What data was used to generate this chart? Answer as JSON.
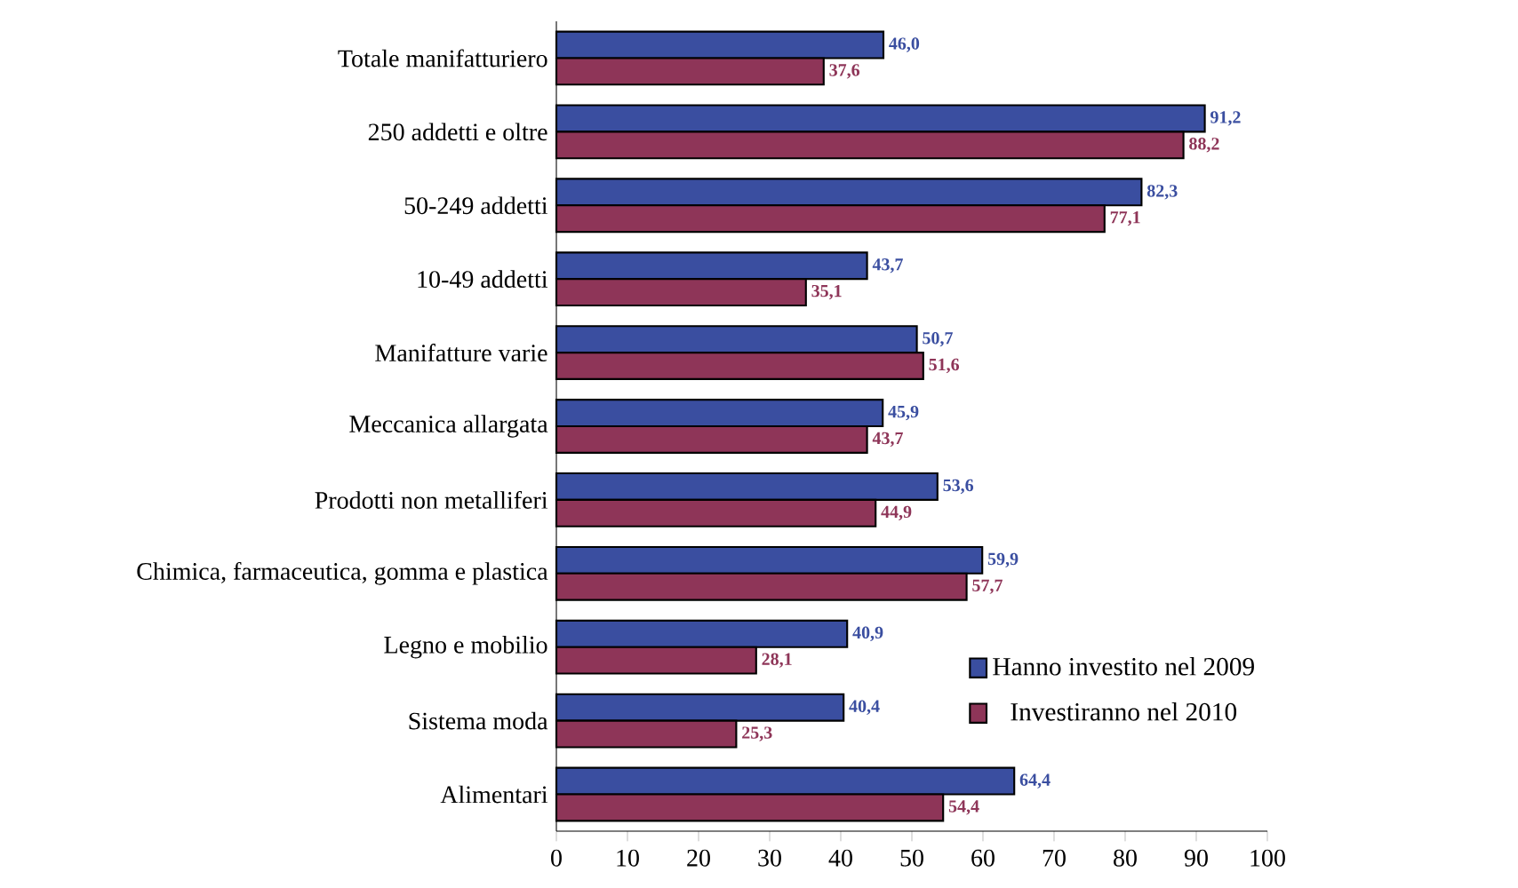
{
  "chart_data": {
    "type": "bar",
    "orientation": "horizontal",
    "categories": [
      "Totale manifatturiero",
      "250 addetti e oltre",
      "50-249 addetti",
      "10-49 addetti",
      "Manifatture varie",
      "Meccanica allargata",
      "Prodotti non metalliferi",
      "Chimica, farmaceutica, gomma e plastica",
      "Legno e mobilio",
      "Sistema moda",
      "Alimentari"
    ],
    "series": [
      {
        "name": "Hanno investito nel 2009",
        "color": "#3a4ea0",
        "values": [
          46.0,
          91.2,
          82.3,
          43.7,
          50.7,
          45.9,
          53.6,
          59.9,
          40.9,
          40.4,
          64.4
        ],
        "value_labels": [
          "46,0",
          "91,2",
          "82,3",
          "43,7",
          "50,7",
          "45,9",
          "53,6",
          "59,9",
          "40,9",
          "40,4",
          "64,4"
        ]
      },
      {
        "name": "Investiranno nel 2010",
        "color": "#8e3558",
        "values": [
          37.6,
          88.2,
          77.1,
          35.1,
          51.6,
          43.7,
          44.9,
          57.7,
          28.1,
          25.3,
          54.4
        ],
        "value_labels": [
          "37,6",
          "88,2",
          "77,1",
          "35,1",
          "51,6",
          "43,7",
          "44,9",
          "57,7",
          "28,1",
          "25,3",
          "54,4"
        ]
      }
    ],
    "xlim": [
      0,
      100
    ],
    "xticks": [
      0,
      10,
      20,
      30,
      40,
      50,
      60,
      70,
      80,
      90,
      100
    ],
    "legend": "bottom right"
  }
}
